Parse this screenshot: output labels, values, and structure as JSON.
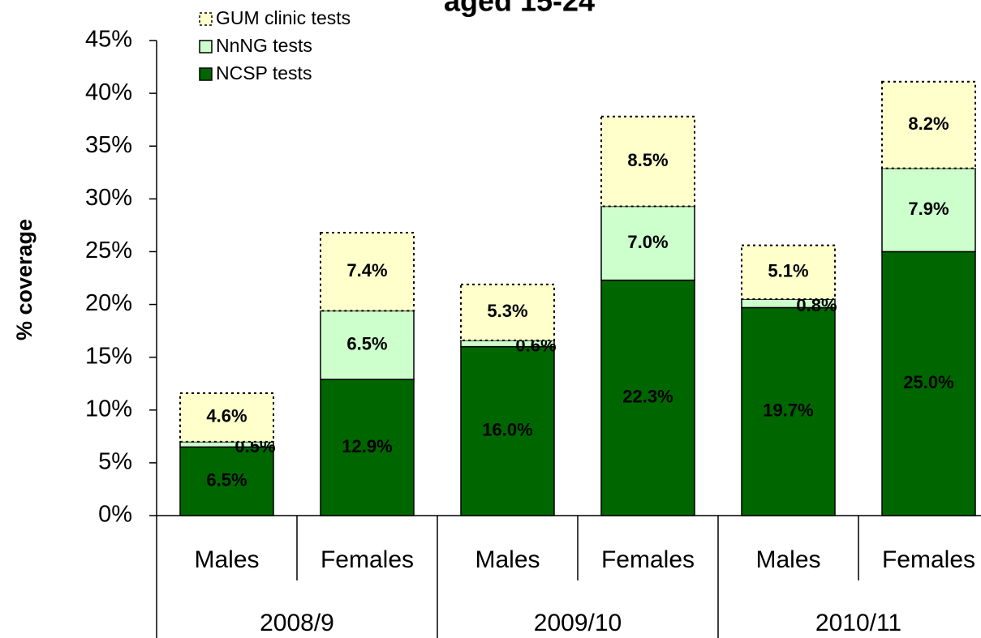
{
  "chart_data": {
    "type": "stacked_bar",
    "title": "aged 15-24",
    "y_axis_label": "% coverage",
    "categories": [
      "Males",
      "Females",
      "Males",
      "Females",
      "Males",
      "Females"
    ],
    "groups": [
      "2008/9",
      "2009/10",
      "2010/11"
    ],
    "series": [
      {
        "name": "NCSP tests",
        "color": "#006600",
        "values": [
          6.5,
          12.9,
          16.0,
          22.3,
          19.7,
          25.0
        ],
        "value_labels": [
          "6.5%",
          "12.9%",
          "16.0%",
          "22.3%",
          "19.7%",
          "25.0%"
        ]
      },
      {
        "name": "NnNG tests",
        "color": "#ccffcc",
        "values": [
          0.5,
          6.5,
          0.6,
          7.0,
          0.8,
          7.9
        ],
        "value_labels": [
          "0.5%",
          "6.5%",
          "0.6%",
          "7.0%",
          "0.8%",
          "7.9%"
        ]
      },
      {
        "name": "GUM clinic tests",
        "color": "#ffffcc",
        "values": [
          4.6,
          7.4,
          5.3,
          8.5,
          5.1,
          8.2
        ],
        "value_labels": [
          "4.6%",
          "7.4%",
          "5.3%",
          "8.5%",
          "5.1%",
          "8.2%"
        ]
      }
    ],
    "ylim": [
      0,
      45
    ],
    "yticks": [
      {
        "value": 0,
        "label": "0%"
      },
      {
        "value": 5,
        "label": "5%"
      },
      {
        "value": 10,
        "label": "10%"
      },
      {
        "value": 15,
        "label": "15%"
      },
      {
        "value": 20,
        "label": "20%"
      },
      {
        "value": 25,
        "label": "25%"
      },
      {
        "value": 30,
        "label": "30%"
      },
      {
        "value": 35,
        "label": "35%"
      },
      {
        "value": 40,
        "label": "40%"
      },
      {
        "value": 45,
        "label": "45%"
      }
    ],
    "legend": "top-left"
  }
}
